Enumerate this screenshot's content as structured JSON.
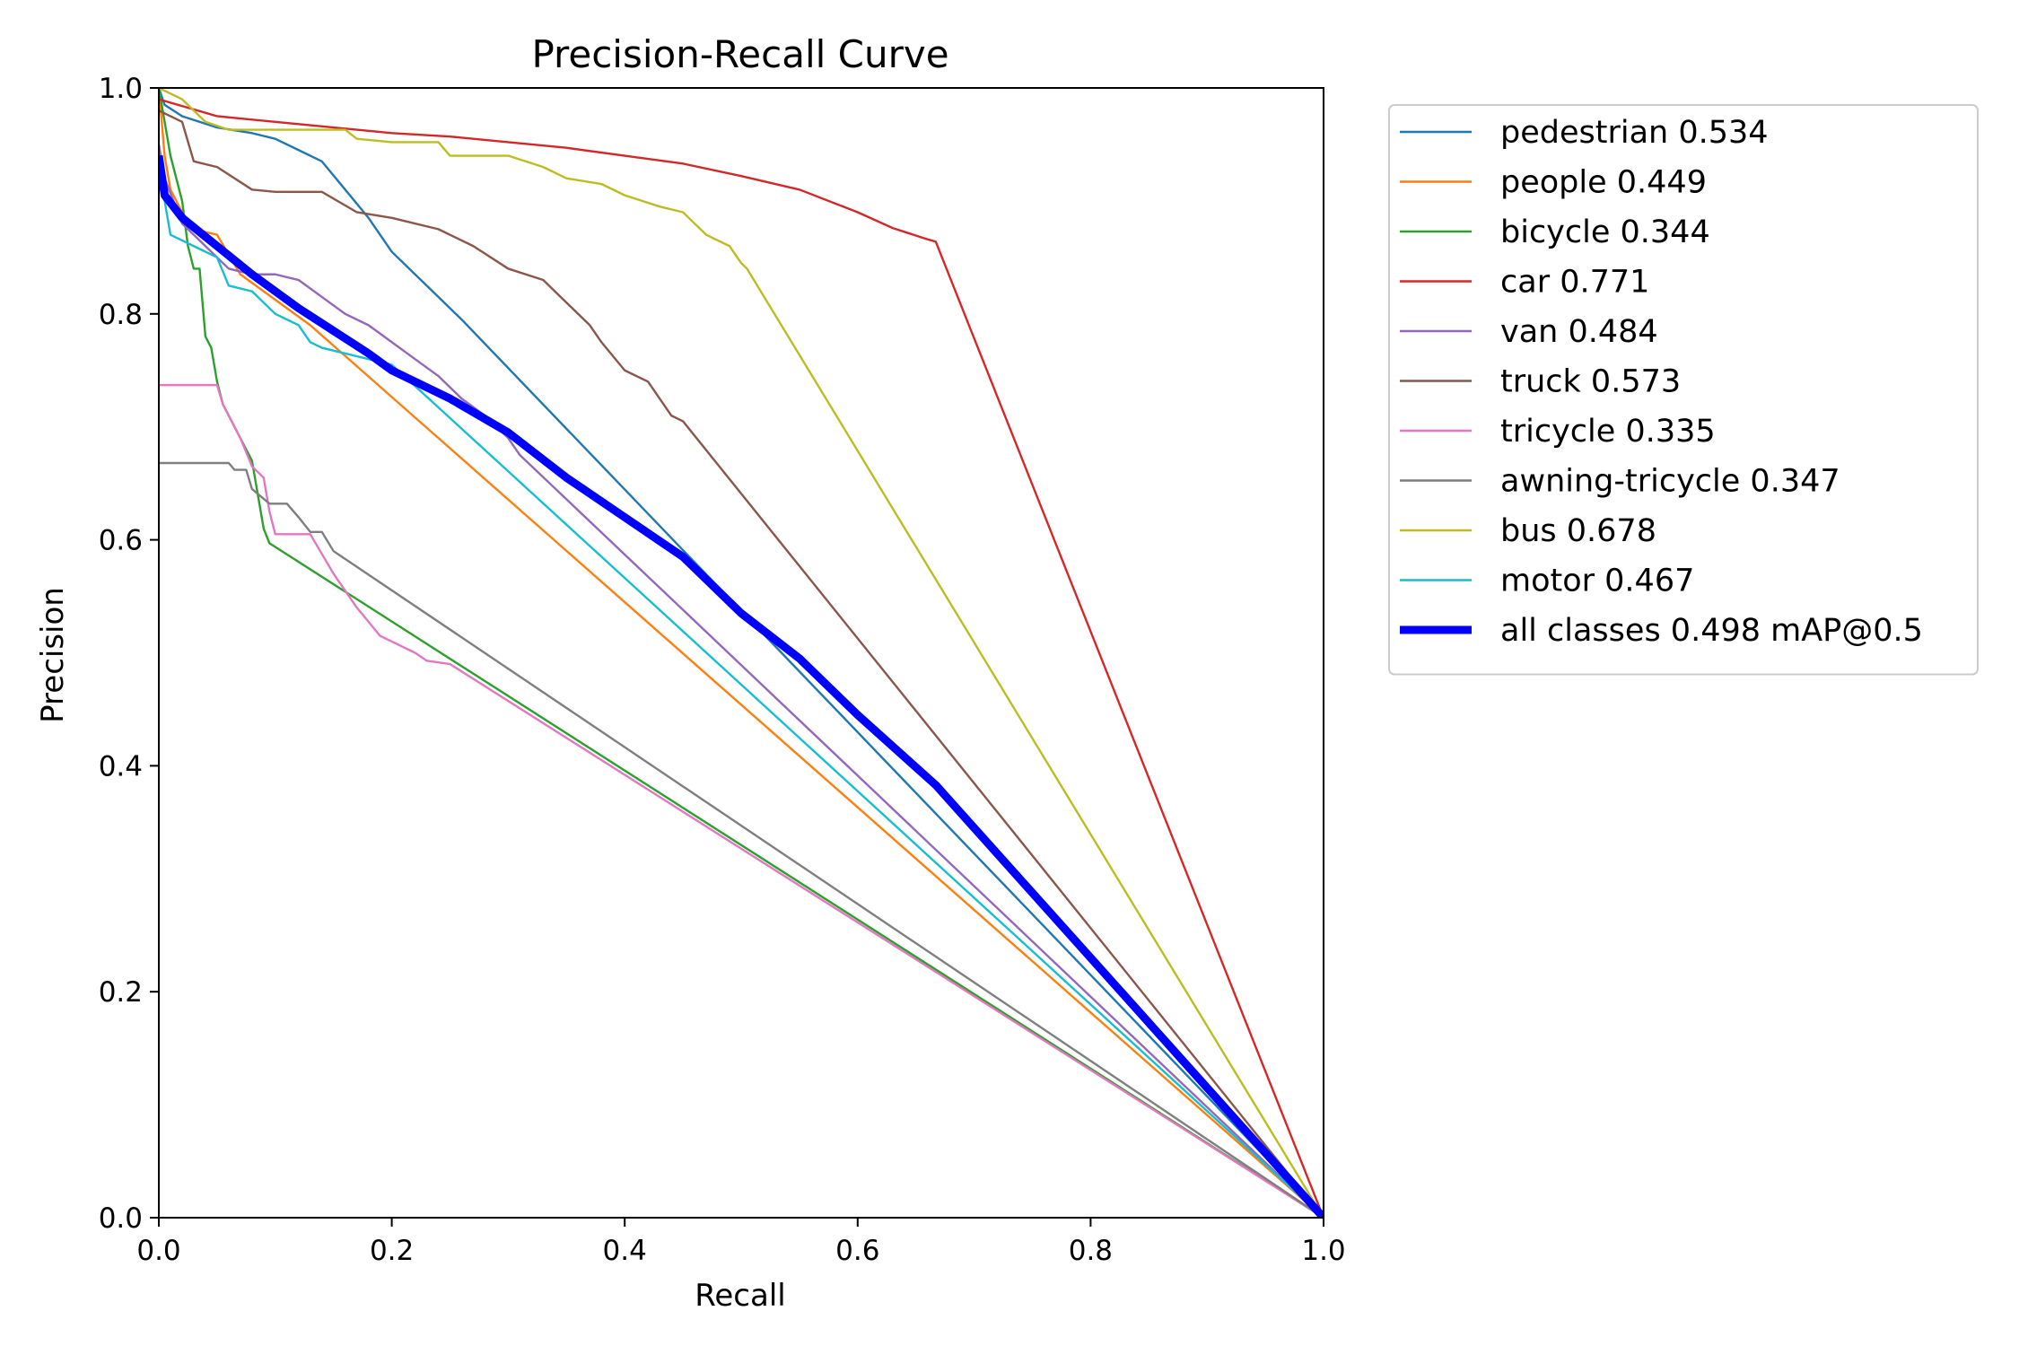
{
  "chart_data": {
    "type": "line",
    "title": "Precision-Recall Curve",
    "xlabel": "Recall",
    "ylabel": "Precision",
    "xlim": [
      0,
      1
    ],
    "ylim": [
      0,
      1
    ],
    "xticks": [
      "0.0",
      "0.2",
      "0.4",
      "0.6",
      "0.8",
      "1.0"
    ],
    "yticks": [
      "0.0",
      "0.2",
      "0.4",
      "0.6",
      "0.8",
      "1.0"
    ],
    "legend_position": "outside-right-top",
    "series": [
      {
        "name": "pedestrian",
        "label": "pedestrian 0.534",
        "ap": 0.534,
        "color": "#1f77b4",
        "x": [
          0,
          0.005,
          0.02,
          0.05,
          0.08,
          0.1,
          0.12,
          0.14,
          0.16,
          0.18,
          0.2,
          0.22,
          0.24,
          0.26,
          1.0
        ],
        "y": [
          1.0,
          0.985,
          0.975,
          0.965,
          0.96,
          0.955,
          0.945,
          0.935,
          0.91,
          0.885,
          0.855,
          0.835,
          0.815,
          0.795,
          0.0
        ]
      },
      {
        "name": "people",
        "label": "people 0.449",
        "ap": 0.449,
        "color": "#ff7f0e",
        "x": [
          0,
          0.005,
          0.01,
          0.02,
          0.03,
          0.05,
          0.07,
          0.09,
          0.11,
          0.13,
          1.0
        ],
        "y": [
          1.0,
          0.94,
          0.91,
          0.89,
          0.875,
          0.87,
          0.835,
          0.82,
          0.805,
          0.79,
          0.0
        ]
      },
      {
        "name": "bicycle",
        "label": "bicycle 0.344",
        "ap": 0.344,
        "color": "#2ca02c",
        "x": [
          0,
          0.005,
          0.01,
          0.02,
          0.025,
          0.03,
          0.035,
          0.04,
          0.045,
          0.05,
          0.055,
          0.06,
          0.07,
          0.08,
          0.09,
          0.095,
          1.0
        ],
        "y": [
          1.0,
          0.97,
          0.94,
          0.9,
          0.86,
          0.84,
          0.84,
          0.78,
          0.77,
          0.74,
          0.72,
          0.71,
          0.69,
          0.67,
          0.61,
          0.597,
          0.0
        ]
      },
      {
        "name": "car",
        "label": "car 0.771",
        "ap": 0.771,
        "color": "#d62728",
        "x": [
          0,
          0.05,
          0.1,
          0.15,
          0.2,
          0.25,
          0.3,
          0.35,
          0.4,
          0.45,
          0.5,
          0.55,
          0.6,
          0.63,
          0.66,
          0.667,
          1.0
        ],
        "y": [
          0.99,
          0.975,
          0.97,
          0.965,
          0.96,
          0.957,
          0.952,
          0.947,
          0.94,
          0.933,
          0.922,
          0.91,
          0.89,
          0.876,
          0.866,
          0.864,
          0.0
        ]
      },
      {
        "name": "van",
        "label": "van 0.484",
        "ap": 0.484,
        "color": "#9467bd",
        "x": [
          0,
          0.005,
          0.02,
          0.04,
          0.06,
          0.08,
          0.1,
          0.12,
          0.14,
          0.16,
          0.18,
          0.2,
          0.22,
          0.24,
          0.26,
          0.28,
          0.3,
          0.31,
          1.0
        ],
        "y": [
          0.95,
          0.92,
          0.88,
          0.86,
          0.84,
          0.835,
          0.835,
          0.83,
          0.815,
          0.8,
          0.79,
          0.775,
          0.76,
          0.745,
          0.725,
          0.71,
          0.69,
          0.675,
          0.0
        ]
      },
      {
        "name": "truck",
        "label": "truck 0.573",
        "ap": 0.573,
        "color": "#8c564b",
        "x": [
          0,
          0.02,
          0.03,
          0.05,
          0.08,
          0.1,
          0.14,
          0.17,
          0.2,
          0.24,
          0.27,
          0.3,
          0.33,
          0.35,
          0.37,
          0.38,
          0.4,
          0.42,
          0.43,
          0.44,
          0.45,
          1.0
        ],
        "y": [
          0.98,
          0.97,
          0.935,
          0.93,
          0.91,
          0.908,
          0.908,
          0.89,
          0.885,
          0.875,
          0.86,
          0.84,
          0.83,
          0.81,
          0.79,
          0.775,
          0.75,
          0.74,
          0.725,
          0.71,
          0.705,
          0.0
        ]
      },
      {
        "name": "tricycle",
        "label": "tricycle 0.335",
        "ap": 0.335,
        "color": "#e377c2",
        "x": [
          0,
          0.05,
          0.055,
          0.06,
          0.07,
          0.08,
          0.09,
          0.095,
          0.1,
          0.11,
          0.13,
          0.15,
          0.17,
          0.19,
          0.2,
          0.22,
          0.23,
          0.25,
          1.0
        ],
        "y": [
          0.737,
          0.737,
          0.72,
          0.71,
          0.69,
          0.665,
          0.655,
          0.625,
          0.605,
          0.605,
          0.605,
          0.57,
          0.54,
          0.515,
          0.51,
          0.5,
          0.493,
          0.49,
          0.0
        ]
      },
      {
        "name": "awning-tricycle",
        "label": "awning-tricycle 0.347",
        "ap": 0.347,
        "color": "#7f7f7f",
        "x": [
          0,
          0.06,
          0.065,
          0.075,
          0.08,
          0.095,
          0.11,
          0.12,
          0.13,
          0.14,
          0.15,
          1.0
        ],
        "y": [
          0.668,
          0.668,
          0.662,
          0.662,
          0.645,
          0.632,
          0.632,
          0.62,
          0.607,
          0.607,
          0.59,
          0.0
        ]
      },
      {
        "name": "bus",
        "label": "bus 0.678",
        "ap": 0.678,
        "color": "#bcbd22",
        "x": [
          0,
          0.02,
          0.04,
          0.06,
          0.1,
          0.15,
          0.16,
          0.17,
          0.2,
          0.24,
          0.25,
          0.3,
          0.33,
          0.35,
          0.38,
          0.4,
          0.43,
          0.45,
          0.47,
          0.49,
          0.5,
          0.505,
          1.0
        ],
        "y": [
          1.0,
          0.99,
          0.97,
          0.963,
          0.963,
          0.963,
          0.963,
          0.955,
          0.952,
          0.952,
          0.94,
          0.94,
          0.93,
          0.92,
          0.915,
          0.905,
          0.895,
          0.89,
          0.87,
          0.86,
          0.845,
          0.84,
          0.0
        ]
      },
      {
        "name": "motor",
        "label": "motor 0.467",
        "ap": 0.467,
        "color": "#17becf",
        "x": [
          0,
          0.005,
          0.01,
          0.02,
          0.03,
          0.05,
          0.06,
          0.08,
          0.1,
          0.12,
          0.13,
          0.14,
          0.16,
          0.18,
          0.2,
          1.0
        ],
        "y": [
          0.93,
          0.9,
          0.87,
          0.865,
          0.86,
          0.85,
          0.825,
          0.82,
          0.8,
          0.79,
          0.775,
          0.77,
          0.765,
          0.76,
          0.755,
          0.0
        ]
      },
      {
        "name": "all classes",
        "label": "all classes 0.498 mAP@0.5",
        "ap": 0.498,
        "color": "#0000ff",
        "bold": true,
        "x": [
          0,
          0.005,
          0.02,
          0.05,
          0.08,
          0.1,
          0.12,
          0.15,
          0.18,
          0.2,
          0.25,
          0.3,
          0.35,
          0.4,
          0.45,
          0.5,
          0.55,
          0.6,
          0.667,
          1.0
        ],
        "y": [
          0.94,
          0.905,
          0.885,
          0.86,
          0.835,
          0.82,
          0.805,
          0.785,
          0.765,
          0.75,
          0.725,
          0.695,
          0.655,
          0.62,
          0.585,
          0.535,
          0.495,
          0.445,
          0.383,
          0.0
        ]
      }
    ]
  }
}
